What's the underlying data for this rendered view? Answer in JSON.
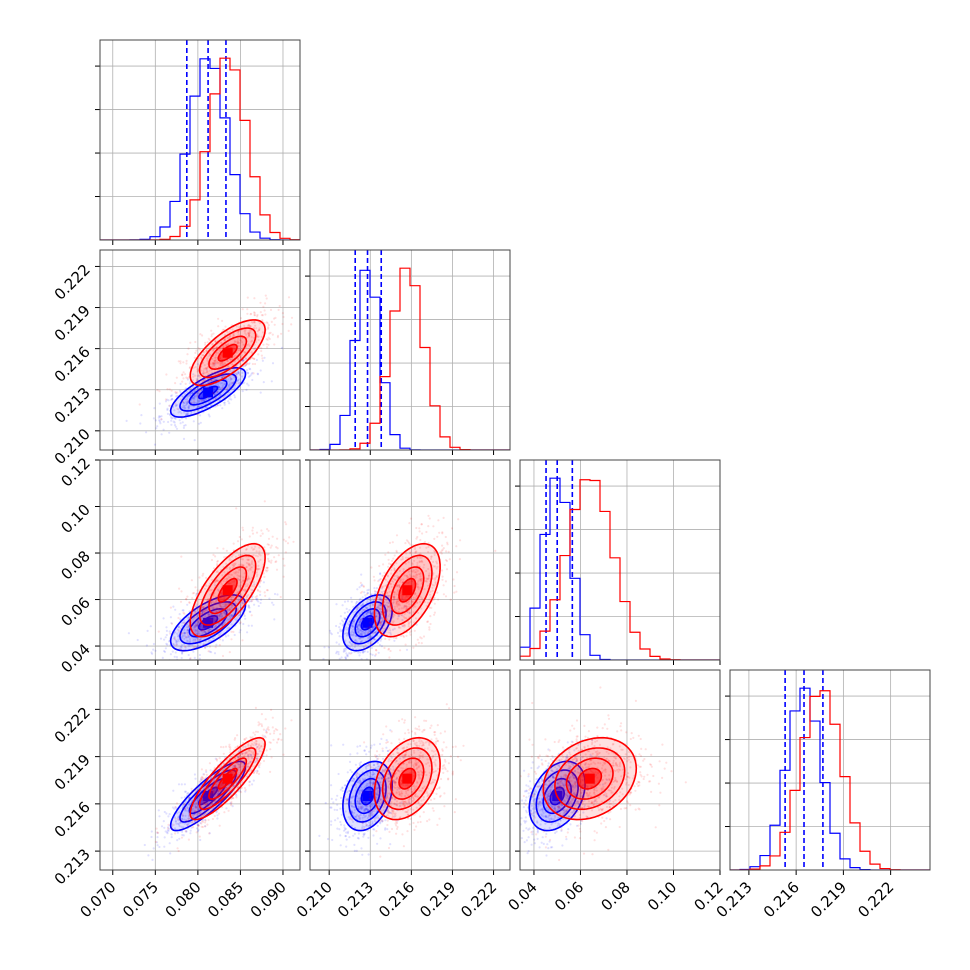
{
  "colors": {
    "blue": "#0000ff",
    "red": "#ff0000"
  },
  "chart_data": {
    "type": "corner",
    "grid": true,
    "parameters": [
      {
        "ticks": [
          0.07,
          0.075,
          0.08,
          0.085,
          0.09
        ],
        "tick_labels": [
          "0.070",
          "0.075",
          "0.080",
          "0.085",
          "0.090"
        ],
        "range": [
          0.0685,
          0.092
        ]
      },
      {
        "ticks": [
          0.21,
          0.213,
          0.216,
          0.219,
          0.222
        ],
        "tick_labels": [
          "0.210",
          "0.213",
          "0.216",
          "0.219",
          "0.222"
        ],
        "range": [
          0.2086,
          0.2232
        ]
      },
      {
        "ticks": [
          0.04,
          0.06,
          0.08,
          0.1,
          0.12
        ],
        "tick_labels": [
          "0.04",
          "0.06",
          "0.08",
          "0.10",
          "0.12"
        ],
        "range": [
          0.034,
          0.12
        ]
      },
      {
        "ticks": [
          0.213,
          0.216,
          0.219,
          0.222
        ],
        "tick_labels": [
          "0.213",
          "0.216",
          "0.219",
          "0.222"
        ],
        "range": [
          0.2118,
          0.2245
        ]
      }
    ],
    "series": [
      {
        "color": "blue",
        "mean": [
          0.0812,
          0.2128,
          0.05,
          0.2165
        ],
        "std": [
          0.0022,
          0.0009,
          0.006,
          0.0011
        ],
        "quantiles": [
          [
            0.0787,
            0.0812,
            0.0833
          ],
          [
            0.2119,
            0.2128,
            0.2138
          ],
          [
            0.0452,
            0.05,
            0.0565
          ],
          [
            0.2153,
            0.2165,
            0.2177
          ]
        ],
        "correlation": [
          0.75,
          0.65,
          0.45,
          0.85,
          0.3,
          0.35
        ]
      },
      {
        "color": "red",
        "mean": [
          0.0835,
          0.2157,
          0.064,
          0.2176
        ],
        "std": [
          0.0022,
          0.0012,
          0.01,
          0.0013
        ],
        "quantiles": [],
        "correlation": [
          0.7,
          0.7,
          0.5,
          0.85,
          0.35,
          0.25
        ]
      }
    ]
  }
}
